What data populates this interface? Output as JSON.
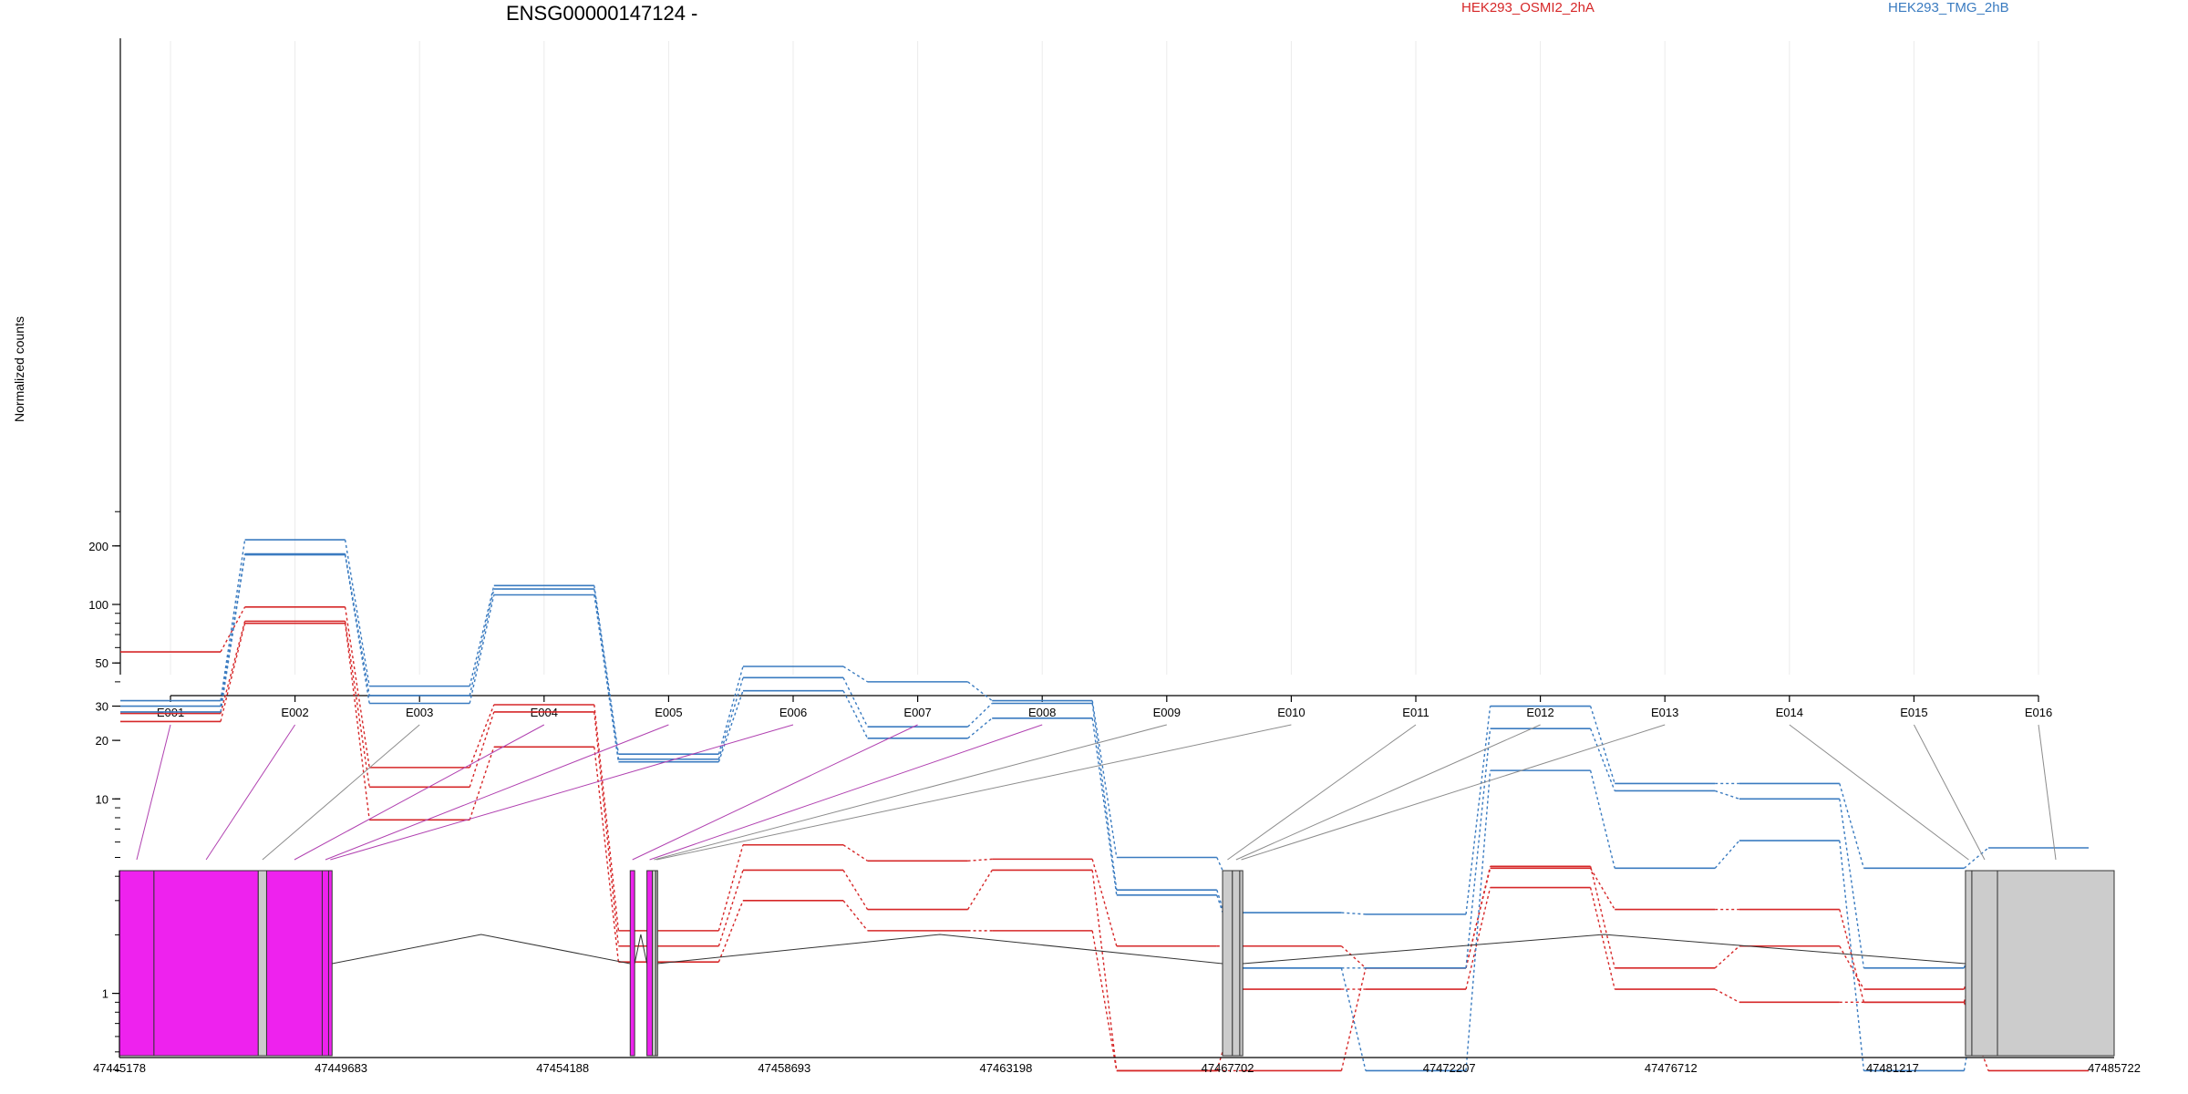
{
  "chart_data": {
    "type": "line",
    "title": "ENSG00000147124 -",
    "ylabel": "Normalized counts",
    "xlabel": "",
    "y_scale": "log",
    "ylim": [
      0.4,
      300
    ],
    "y_ticks": [
      1,
      10,
      20,
      30,
      50,
      100,
      200
    ],
    "grid": "vertical lines at exon centers",
    "legend": [
      {
        "label": "HEK293_OSMI2_2hA",
        "color": "#d62728",
        "placement": "top-center-right"
      },
      {
        "label": "HEK293_TMG_2hB",
        "color": "#3a7bc0",
        "placement": "top-right"
      }
    ],
    "categories": [
      "E001",
      "E002",
      "E003",
      "E004",
      "E005",
      "E006",
      "E007",
      "E008",
      "E009",
      "E010",
      "E011",
      "E012",
      "E013",
      "E014",
      "E015",
      "E016"
    ],
    "series": [
      {
        "group": "HEK293_OSMI2_2hA",
        "color": "#d62728",
        "values": [
          57,
          97,
          14.5,
          30.5,
          2.1,
          5.8,
          4.8,
          4.9,
          1.75,
          1.75,
          1.35,
          4.5,
          1.35,
          1.75,
          1.05,
          2.7
        ]
      },
      {
        "group": "HEK293_OSMI2_2hA",
        "color": "#d62728",
        "values": [
          27.5,
          82,
          11.5,
          28,
          1.75,
          4.3,
          2.7,
          4.3,
          0.4,
          0.4,
          1.35,
          4.4,
          2.7,
          2.7,
          0.9,
          2.7
        ]
      },
      {
        "group": "HEK293_OSMI2_2hA",
        "color": "#d62728",
        "values": [
          25,
          80,
          7.8,
          18.5,
          1.45,
          3,
          2.1,
          2.1,
          0.4,
          1.05,
          1.05,
          3.5,
          1.05,
          0.9,
          0.9,
          0.4
        ]
      },
      {
        "group": "HEK293_TMG_2hB",
        "color": "#3a7bc0",
        "values": [
          32,
          215,
          38,
          125,
          17,
          48,
          40,
          32,
          5,
          2.6,
          2.55,
          30,
          12,
          12,
          4.4,
          5.6
        ]
      },
      {
        "group": "HEK293_TMG_2hB",
        "color": "#3a7bc0",
        "values": [
          30,
          182,
          34,
          120,
          16,
          42,
          23.5,
          31,
          3.4,
          1.35,
          1.35,
          23,
          11,
          10,
          1.35,
          3.3
        ]
      },
      {
        "group": "HEK293_TMG_2hB",
        "color": "#3a7bc0",
        "values": [
          28,
          180,
          31,
          112,
          15.5,
          36,
          20.5,
          26,
          3.2,
          1.35,
          0.4,
          14,
          4.4,
          6.1,
          0.4,
          2.1
        ]
      }
    ],
    "genomic_axis": {
      "ticks": [
        "47445178",
        "47449683",
        "47454188",
        "47458693",
        "47463198",
        "47467702",
        "47472207",
        "47476712",
        "47481217",
        "47485722"
      ],
      "range": [
        47445178,
        47485722
      ]
    },
    "exons": [
      {
        "id": "E001",
        "start": 47445178,
        "end": 47445880,
        "color": "#ee22ee"
      },
      {
        "id": "E002",
        "start": 47445880,
        "end": 47448000,
        "color": "#ee22ee"
      },
      {
        "id": "E003",
        "start": 47448000,
        "end": 47448170,
        "color": "#cccccc"
      },
      {
        "id": "E004",
        "start": 47448170,
        "end": 47449300,
        "color": "#ee22ee"
      },
      {
        "id": "E005",
        "start": 47449300,
        "end": 47449430,
        "color": "#ee22ee"
      },
      {
        "id": "E006",
        "start": 47449430,
        "end": 47449500,
        "color": "#ee22ee"
      },
      {
        "id": "E007",
        "start": 47455560,
        "end": 47455650,
        "color": "#ee22ee"
      },
      {
        "id": "E008",
        "start": 47455900,
        "end": 47456010,
        "color": "#ee22ee"
      },
      {
        "id": "E009",
        "start": 47456010,
        "end": 47456080,
        "color": "#cccccc"
      },
      {
        "id": "E010",
        "start": 47456080,
        "end": 47456110,
        "color": "#cccccc"
      },
      {
        "id": "E011",
        "start": 47467600,
        "end": 47467800,
        "color": "#cccccc"
      },
      {
        "id": "E012",
        "start": 47467800,
        "end": 47467950,
        "color": "#cccccc"
      },
      {
        "id": "E013",
        "start": 47467950,
        "end": 47468010,
        "color": "#cccccc"
      },
      {
        "id": "E014",
        "start": 47482700,
        "end": 47482830,
        "color": "#cccccc"
      },
      {
        "id": "E015",
        "start": 47482830,
        "end": 47483350,
        "color": "#cccccc"
      },
      {
        "id": "E016",
        "start": 47483350,
        "end": 47485722,
        "color": "#cccccc"
      }
    ]
  }
}
